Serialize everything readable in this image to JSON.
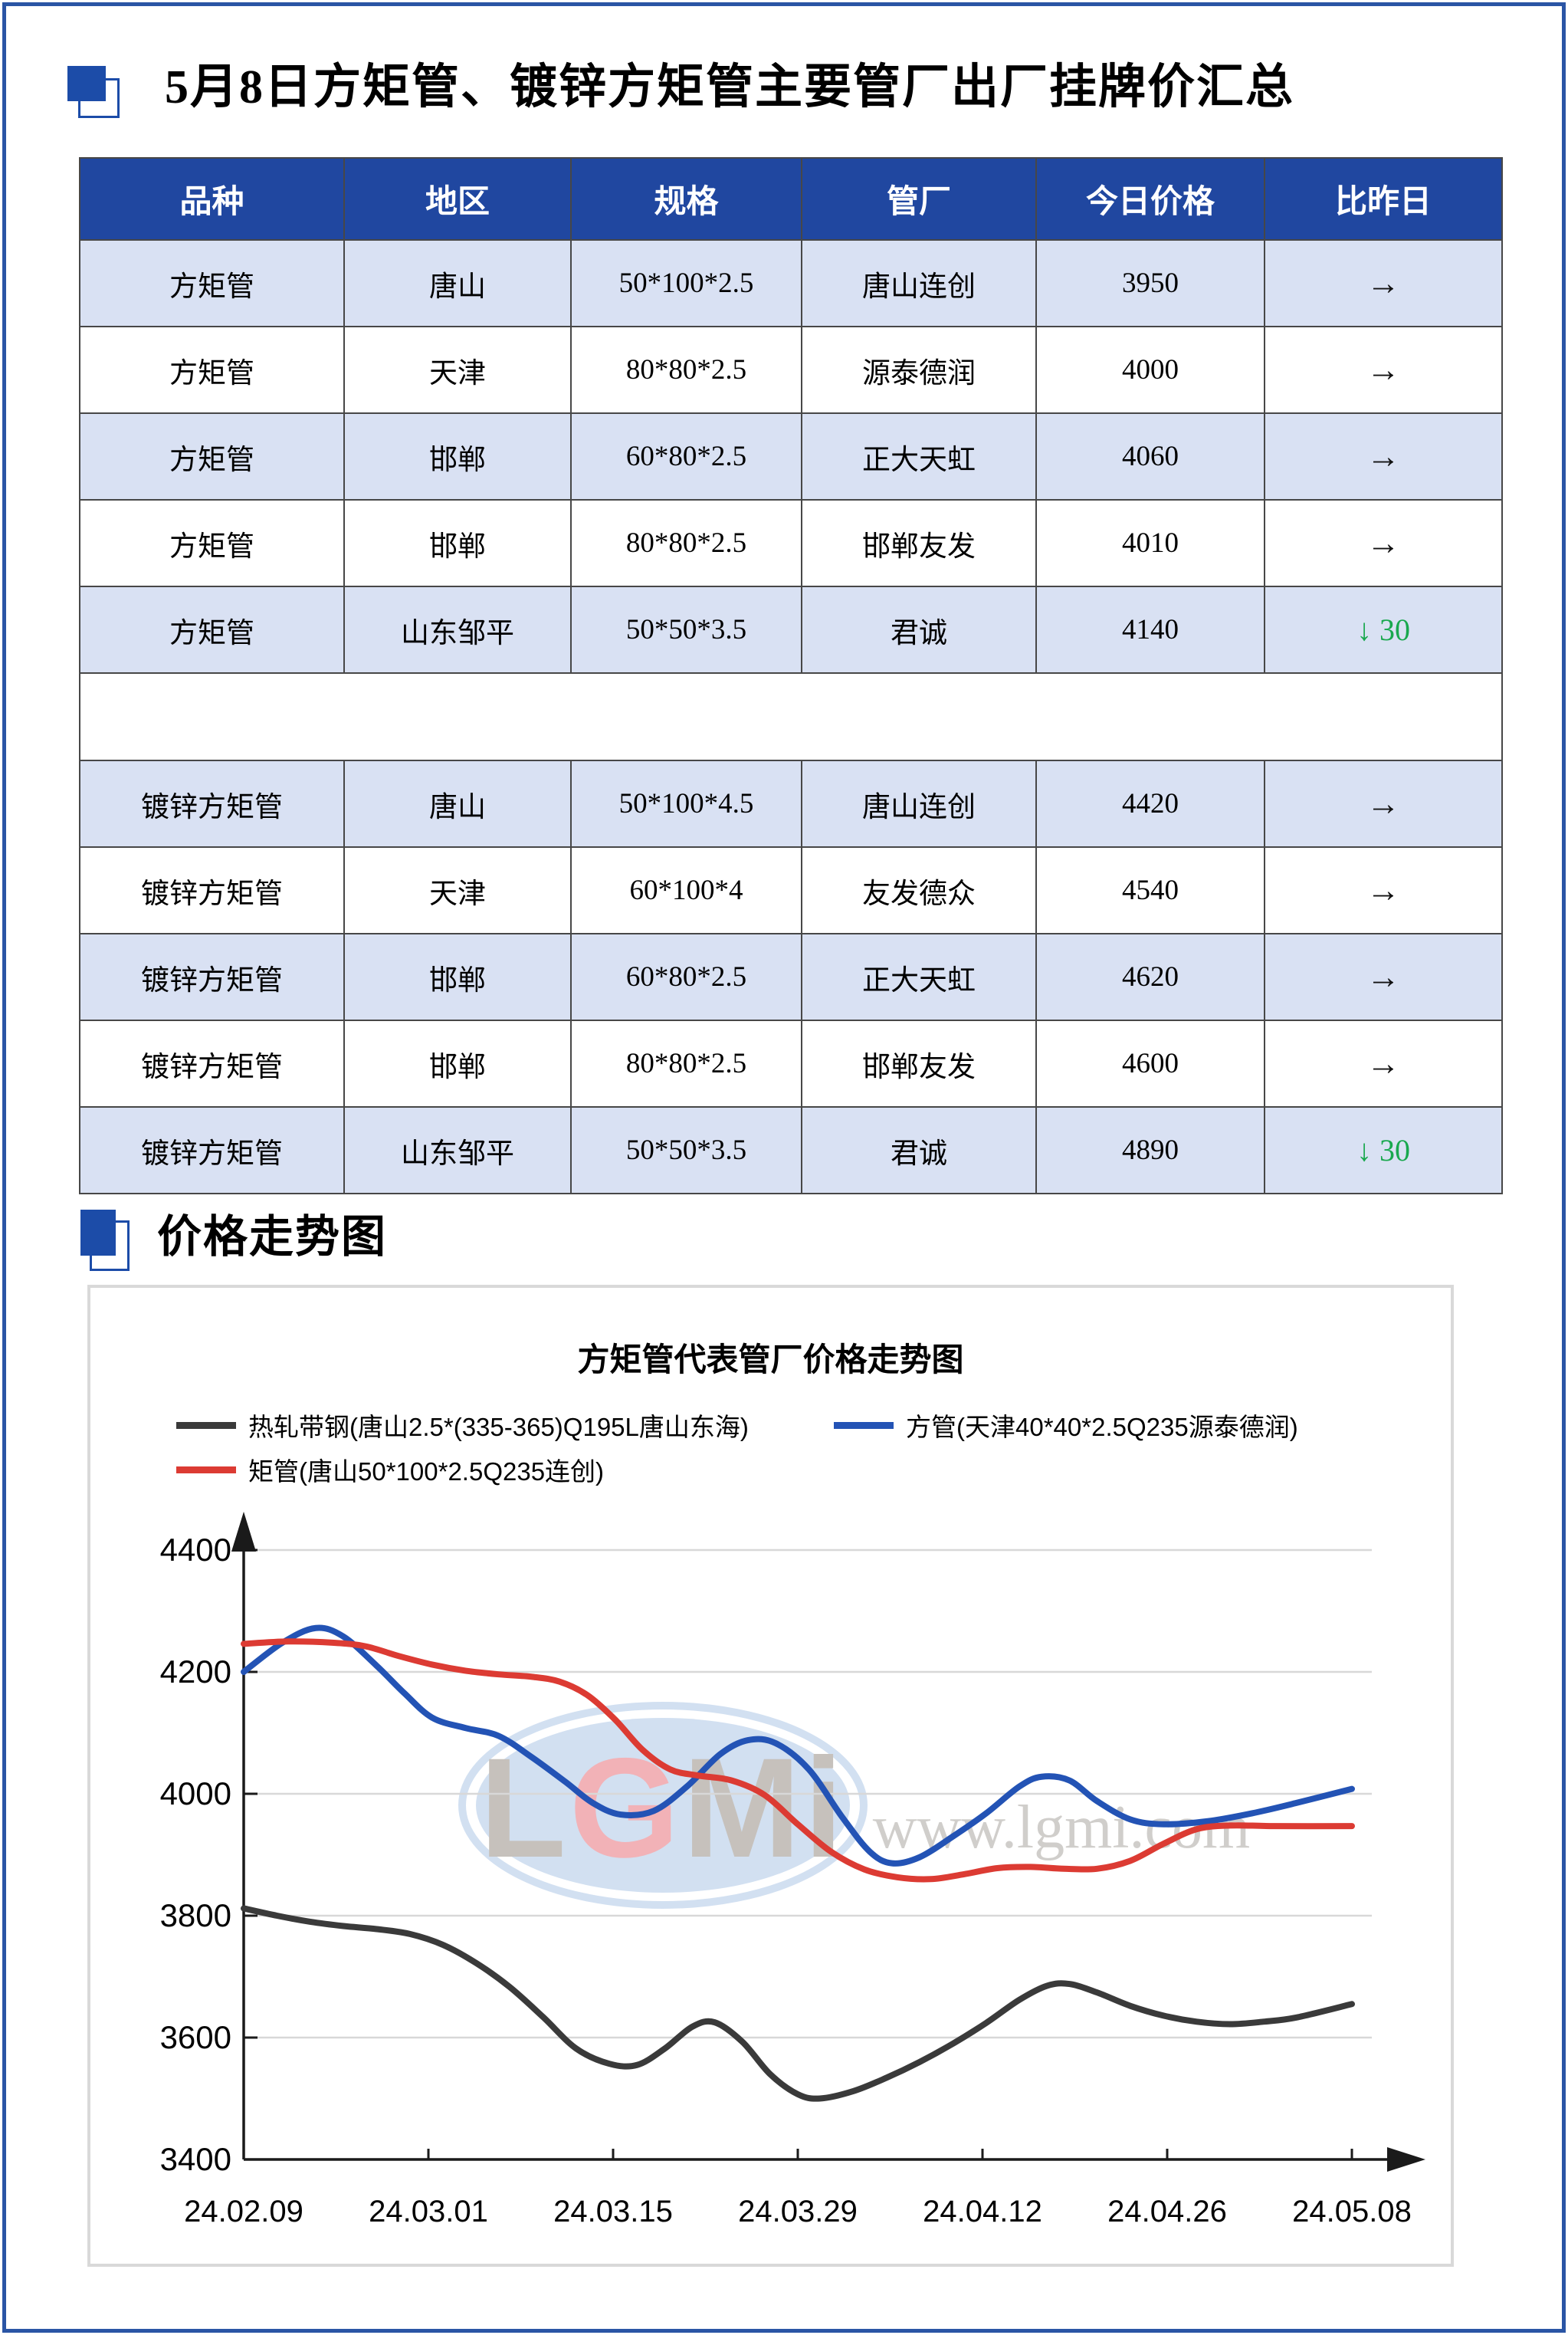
{
  "page": {
    "title": "5月8日方矩管、镀锌方矩管主要管厂出厂挂牌价汇总",
    "section2_title": "价格走势图",
    "accent_blue": "#1C4CA8",
    "border_blue": "#2A55A5",
    "header_bg": "#2047A0",
    "row_shade": "#D9E1F3",
    "down_green": "#19A84E"
  },
  "price_table": {
    "headers": [
      "品种",
      "地区",
      "规格",
      "管厂",
      "今日价格",
      "比昨日"
    ],
    "separator_after": 4,
    "rows": [
      {
        "cells": [
          "方矩管",
          "唐山",
          "50*100*2.5",
          "唐山连创",
          "3950"
        ],
        "change": {
          "dir": "flat",
          "label": "→"
        },
        "shaded": true
      },
      {
        "cells": [
          "方矩管",
          "天津",
          "80*80*2.5",
          "源泰德润",
          "4000"
        ],
        "change": {
          "dir": "flat",
          "label": "→"
        },
        "shaded": false
      },
      {
        "cells": [
          "方矩管",
          "邯郸",
          "60*80*2.5",
          "正大天虹",
          "4060"
        ],
        "change": {
          "dir": "flat",
          "label": "→"
        },
        "shaded": true
      },
      {
        "cells": [
          "方矩管",
          "邯郸",
          "80*80*2.5",
          "邯郸友发",
          "4010"
        ],
        "change": {
          "dir": "flat",
          "label": "→"
        },
        "shaded": false
      },
      {
        "cells": [
          "方矩管",
          "山东邹平",
          "50*50*3.5",
          "君诚",
          "4140"
        ],
        "change": {
          "dir": "down",
          "label": "↓ 30"
        },
        "shaded": true
      },
      {
        "cells": [
          "镀锌方矩管",
          "唐山",
          "50*100*4.5",
          "唐山连创",
          "4420"
        ],
        "change": {
          "dir": "flat",
          "label": "→"
        },
        "shaded": true
      },
      {
        "cells": [
          "镀锌方矩管",
          "天津",
          "60*100*4",
          "友发德众",
          "4540"
        ],
        "change": {
          "dir": "flat",
          "label": "→"
        },
        "shaded": false
      },
      {
        "cells": [
          "镀锌方矩管",
          "邯郸",
          "60*80*2.5",
          "正大天虹",
          "4620"
        ],
        "change": {
          "dir": "flat",
          "label": "→"
        },
        "shaded": true
      },
      {
        "cells": [
          "镀锌方矩管",
          "邯郸",
          "80*80*2.5",
          "邯郸友发",
          "4600"
        ],
        "change": {
          "dir": "flat",
          "label": "→"
        },
        "shaded": false
      },
      {
        "cells": [
          "镀锌方矩管",
          "山东邹平",
          "50*50*3.5",
          "君诚",
          "4890"
        ],
        "change": {
          "dir": "down",
          "label": "↓ 30"
        },
        "shaded": true
      }
    ]
  },
  "chart_data": {
    "type": "line",
    "title": "方矩管代表管厂价格走势图",
    "ylim": [
      3400,
      4400
    ],
    "yticks": [
      3400,
      3600,
      3800,
      4000,
      4200,
      4400
    ],
    "x_labels": [
      "24.02.09",
      "24.03.01",
      "24.03.15",
      "24.03.29",
      "24.04.12",
      "24.04.26",
      "24.05.08"
    ],
    "grid": "horizontal",
    "legend_position": "top-left-two-rows",
    "watermark": {
      "logo_letters": [
        "L",
        "G",
        "M",
        "i"
      ],
      "url": "www.lgmi.com"
    },
    "series": [
      {
        "name": "热轧带钢(唐山2.5*(335-365)Q195L唐山东海)",
        "color": "#3A3A3A",
        "points": [
          [
            0.0,
            3812
          ],
          [
            0.03,
            3800
          ],
          [
            0.06,
            3790
          ],
          [
            0.09,
            3783
          ],
          [
            0.12,
            3778
          ],
          [
            0.15,
            3770
          ],
          [
            0.18,
            3752
          ],
          [
            0.21,
            3722
          ],
          [
            0.24,
            3683
          ],
          [
            0.27,
            3634
          ],
          [
            0.3,
            3582
          ],
          [
            0.33,
            3557
          ],
          [
            0.355,
            3555
          ],
          [
            0.38,
            3582
          ],
          [
            0.405,
            3618
          ],
          [
            0.425,
            3625
          ],
          [
            0.45,
            3593
          ],
          [
            0.475,
            3540
          ],
          [
            0.5,
            3507
          ],
          [
            0.52,
            3500
          ],
          [
            0.55,
            3512
          ],
          [
            0.58,
            3534
          ],
          [
            0.61,
            3560
          ],
          [
            0.64,
            3590
          ],
          [
            0.67,
            3624
          ],
          [
            0.7,
            3662
          ],
          [
            0.725,
            3685
          ],
          [
            0.745,
            3688
          ],
          [
            0.77,
            3674
          ],
          [
            0.8,
            3652
          ],
          [
            0.83,
            3636
          ],
          [
            0.86,
            3626
          ],
          [
            0.89,
            3622
          ],
          [
            0.92,
            3626
          ],
          [
            0.95,
            3633
          ],
          [
            1.0,
            3655
          ]
        ]
      },
      {
        "name": "方管(天津40*40*2.5Q235源泰德润)",
        "color": "#2353B5",
        "points": [
          [
            0.0,
            4200
          ],
          [
            0.035,
            4248
          ],
          [
            0.065,
            4272
          ],
          [
            0.09,
            4258
          ],
          [
            0.12,
            4210
          ],
          [
            0.145,
            4165
          ],
          [
            0.17,
            4125
          ],
          [
            0.2,
            4108
          ],
          [
            0.23,
            4095
          ],
          [
            0.26,
            4060
          ],
          [
            0.29,
            4020
          ],
          [
            0.315,
            3985
          ],
          [
            0.34,
            3966
          ],
          [
            0.37,
            3972
          ],
          [
            0.4,
            4012
          ],
          [
            0.43,
            4065
          ],
          [
            0.455,
            4088
          ],
          [
            0.48,
            4083
          ],
          [
            0.51,
            4040
          ],
          [
            0.54,
            3962
          ],
          [
            0.565,
            3905
          ],
          [
            0.585,
            3886
          ],
          [
            0.61,
            3896
          ],
          [
            0.64,
            3930
          ],
          [
            0.67,
            3968
          ],
          [
            0.7,
            4012
          ],
          [
            0.72,
            4028
          ],
          [
            0.745,
            4022
          ],
          [
            0.77,
            3988
          ],
          [
            0.8,
            3958
          ],
          [
            0.83,
            3950
          ],
          [
            0.87,
            3955
          ],
          [
            0.91,
            3968
          ],
          [
            0.95,
            3985
          ],
          [
            1.0,
            4008
          ]
        ]
      },
      {
        "name": "矩管(唐山50*100*2.5Q235连创)",
        "color": "#DC3B33",
        "points": [
          [
            0.0,
            4246
          ],
          [
            0.04,
            4250
          ],
          [
            0.08,
            4248
          ],
          [
            0.11,
            4242
          ],
          [
            0.14,
            4226
          ],
          [
            0.17,
            4212
          ],
          [
            0.2,
            4202
          ],
          [
            0.23,
            4196
          ],
          [
            0.26,
            4192
          ],
          [
            0.285,
            4184
          ],
          [
            0.31,
            4162
          ],
          [
            0.335,
            4122
          ],
          [
            0.36,
            4072
          ],
          [
            0.385,
            4040
          ],
          [
            0.41,
            4030
          ],
          [
            0.44,
            4022
          ],
          [
            0.47,
            3998
          ],
          [
            0.5,
            3950
          ],
          [
            0.53,
            3905
          ],
          [
            0.56,
            3876
          ],
          [
            0.59,
            3863
          ],
          [
            0.62,
            3860
          ],
          [
            0.65,
            3868
          ],
          [
            0.68,
            3878
          ],
          [
            0.71,
            3880
          ],
          [
            0.74,
            3877
          ],
          [
            0.77,
            3877
          ],
          [
            0.8,
            3890
          ],
          [
            0.83,
            3918
          ],
          [
            0.86,
            3942
          ],
          [
            0.89,
            3948
          ],
          [
            0.93,
            3947
          ],
          [
            1.0,
            3947
          ]
        ]
      }
    ],
    "legend_rows": [
      [
        0,
        1
      ],
      [
        2
      ]
    ]
  }
}
